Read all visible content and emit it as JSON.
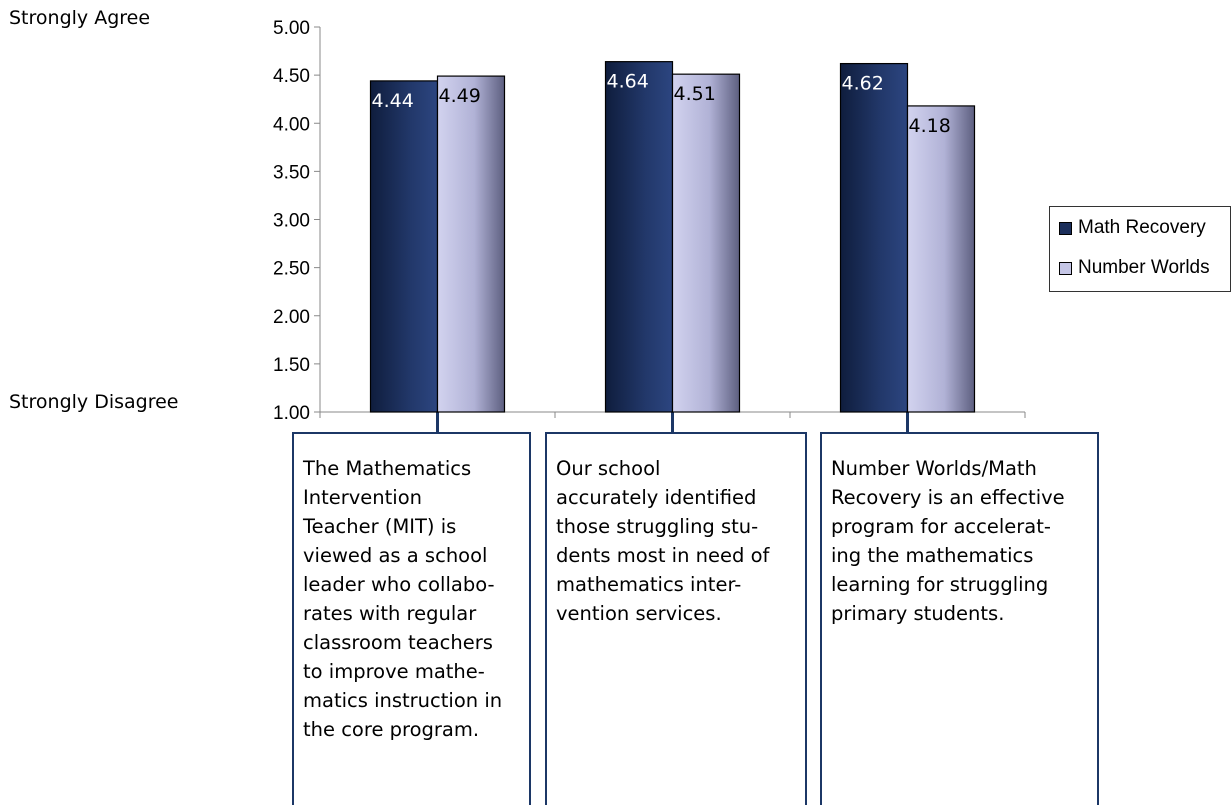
{
  "chart_data": {
    "type": "bar",
    "categories": [
      "The Mathematics Intervention Teacher (MIT) is viewed as a school leader who collaborates with regular classroom teachers to improve mathematics instruction in the core program.",
      "Our school accurately identified those struggling students most in need of mathematics intervention services.",
      "Number Worlds/Math Recovery is an effective program for accelerating the mathematics learning for struggling primary students."
    ],
    "category_lines": [
      [
        "The Mathematics",
        "Intervention",
        "Teacher (MIT) is",
        "viewed as a school",
        "leader who collabo-",
        "rates with regular",
        "classroom teachers",
        "to improve mathe-",
        "matics instruction in",
        "the core program."
      ],
      [
        "Our school",
        "accurately identified",
        "those struggling stu-",
        "dents most in need of",
        "mathematics inter-",
        "vention services."
      ],
      [
        "Number Worlds/Math",
        "Recovery is an effective",
        "program for accelerat-",
        "ing the mathematics",
        "learning for struggling",
        "primary students."
      ]
    ],
    "series": [
      {
        "name": "Math Recovery",
        "values": [
          4.44,
          4.64,
          4.62
        ],
        "labels": [
          "4.44",
          "4.64",
          "4.62"
        ],
        "color": "#1b2e5a"
      },
      {
        "name": "Number Worlds",
        "values": [
          4.49,
          4.51,
          4.18
        ],
        "labels": [
          "4.49",
          "4.51",
          "4.18"
        ],
        "color": "#c5c6e6"
      }
    ],
    "ylim": [
      1.0,
      5.0
    ],
    "yticks": [
      "1.00",
      "1.50",
      "2.00",
      "2.50",
      "3.00",
      "3.50",
      "4.00",
      "4.50",
      "5.00"
    ],
    "ytop_label": "Strongly Agree",
    "ybottom_label": "Strongly Disagree",
    "legend_position": "right",
    "grid": false
  }
}
